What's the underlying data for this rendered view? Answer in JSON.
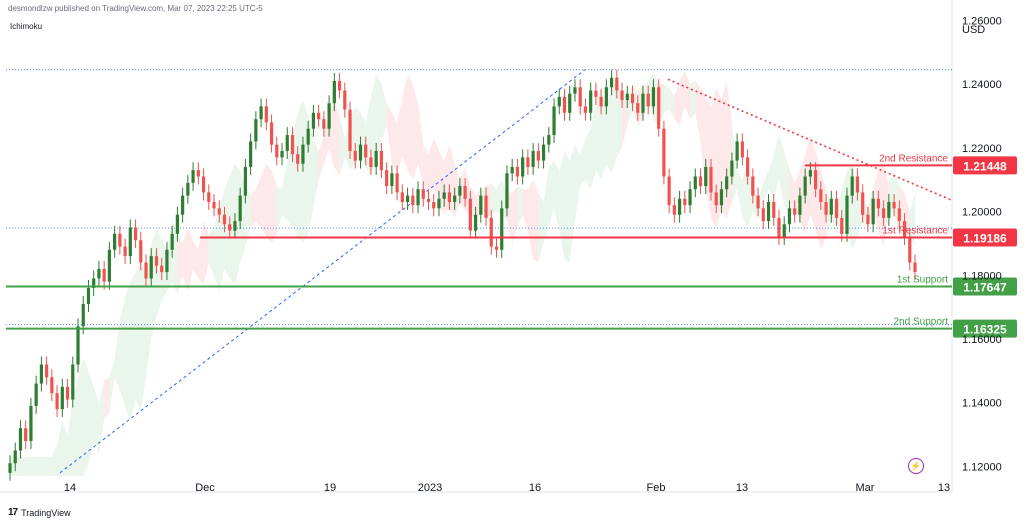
{
  "header": {
    "publisher": "desmondlzw published on TradingView.com, Mar 07, 2023 22:25 UTC-5",
    "indicator": "Ichimoku"
  },
  "footer": {
    "logo": "17",
    "brand": "TradingView"
  },
  "colors": {
    "up": "#26a69a",
    "up_body": "#2e7d32",
    "down": "#ef5350",
    "resistance": "#f23645",
    "support": "#43a047",
    "trend": "#2962ff",
    "cloud_bull": "#e8f5e9",
    "cloud_bear": "#fde7e7"
  },
  "chart_data": {
    "type": "candlestick",
    "currency": "USD",
    "y_ticks": [
      "1.26000",
      "1.24000",
      "1.22000",
      "1.20000",
      "1.18000",
      "1.16000",
      "1.14000",
      "1.12000"
    ],
    "ylim": [
      1.117,
      1.262
    ],
    "x_ticks": [
      "14",
      "Dec",
      "19",
      "2023",
      "16",
      "Feb",
      "13",
      "Mar",
      "13"
    ],
    "levels": [
      {
        "name": "2nd Resistance",
        "value": 1.21448,
        "label": "1.21448",
        "kind": "resistance"
      },
      {
        "name": "1st Resistance",
        "value": 1.19186,
        "label": "1.19186",
        "kind": "resistance"
      },
      {
        "name": "1st Support",
        "value": 1.17647,
        "label": "1.17647",
        "kind": "support"
      },
      {
        "name": "2nd Support",
        "value": 1.16325,
        "label": "1.16325",
        "kind": "support"
      }
    ],
    "dotted_lines": [
      1.2445,
      1.1948,
      1.1645
    ],
    "close_series": [
      1.121,
      1.125,
      1.132,
      1.128,
      1.139,
      1.146,
      1.152,
      1.148,
      1.143,
      1.138,
      1.145,
      1.141,
      1.152,
      1.164,
      1.171,
      1.176,
      1.179,
      1.182,
      1.178,
      1.188,
      1.193,
      1.189,
      1.186,
      1.195,
      1.191,
      1.184,
      1.179,
      1.186,
      1.183,
      1.181,
      1.188,
      1.193,
      1.199,
      1.205,
      1.209,
      1.213,
      1.211,
      1.206,
      1.203,
      1.201,
      1.199,
      1.196,
      1.194,
      1.197,
      1.205,
      1.214,
      1.222,
      1.229,
      1.233,
      1.228,
      1.221,
      1.217,
      1.219,
      1.224,
      1.218,
      1.215,
      1.221,
      1.226,
      1.231,
      1.229,
      1.226,
      1.234,
      1.241,
      1.238,
      1.232,
      1.219,
      1.216,
      1.221,
      1.217,
      1.214,
      1.219,
      1.213,
      1.208,
      1.212,
      1.206,
      1.203,
      1.205,
      1.202,
      1.207,
      1.204,
      1.203,
      1.201,
      1.204,
      1.206,
      1.203,
      1.205,
      1.208,
      1.204,
      1.194,
      1.199,
      1.205,
      1.198,
      1.189,
      1.188,
      1.201,
      1.212,
      1.214,
      1.211,
      1.217,
      1.214,
      1.219,
      1.216,
      1.221,
      1.224,
      1.233,
      1.236,
      1.231,
      1.237,
      1.239,
      1.233,
      1.231,
      1.238,
      1.236,
      1.233,
      1.239,
      1.242,
      1.238,
      1.235,
      1.237,
      1.234,
      1.231,
      1.237,
      1.233,
      1.239,
      1.226,
      1.211,
      1.202,
      1.199,
      1.204,
      1.202,
      1.207,
      1.211,
      1.208,
      1.214,
      1.206,
      1.202,
      1.207,
      1.211,
      1.216,
      1.222,
      1.217,
      1.211,
      1.205,
      1.201,
      1.197,
      1.203,
      1.198,
      1.192,
      1.196,
      1.201,
      1.199,
      1.205,
      1.211,
      1.213,
      1.207,
      1.203,
      1.199,
      1.204,
      1.198,
      1.193,
      1.205,
      1.211,
      1.206,
      1.199,
      1.196,
      1.204,
      1.201,
      1.198,
      1.203,
      1.201,
      1.197,
      1.192,
      1.184,
      1.181
    ]
  },
  "icons": {
    "lightning": "lightning-icon"
  }
}
